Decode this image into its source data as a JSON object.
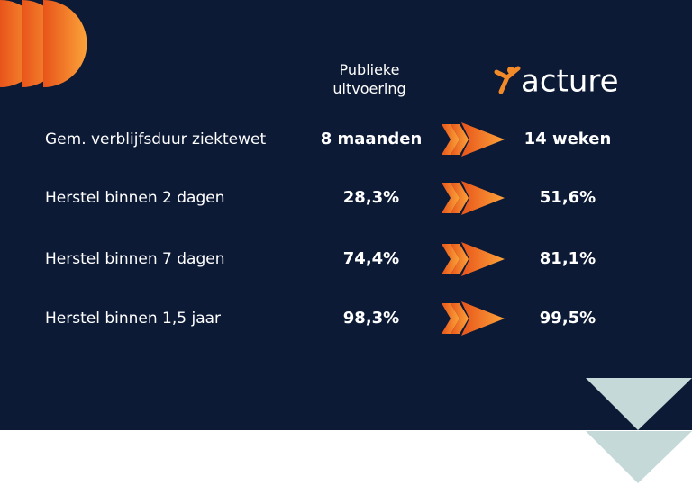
{
  "header": {
    "public_label": "Publieke uitvoering",
    "brand": "acture"
  },
  "table": {
    "rows": [
      [
        "Gem. verblijfsduur ziektewet",
        "8 maanden",
        "14 weken"
      ],
      [
        "Herstel binnen 2 dagen",
        "28,3%",
        "51,6%"
      ],
      [
        "Herstel binnen 7 dagen",
        "74,4%",
        "81,1%"
      ],
      [
        "Herstel binnen 1,5 jaar",
        "98,3%",
        "99,5%"
      ]
    ]
  }
}
